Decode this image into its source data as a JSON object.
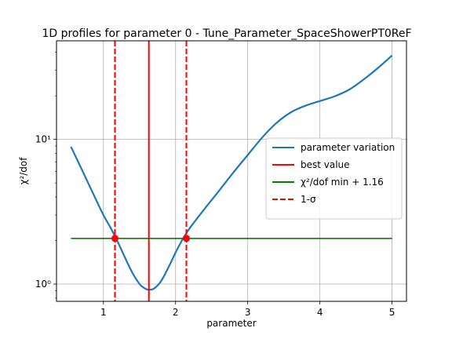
{
  "chart_data": {
    "type": "line",
    "title": "1D profiles for parameter 0 - Tune_Parameter_SpaceShowerPT0ReF",
    "xlabel": "parameter",
    "ylabel": "χ²/dof",
    "xlim": [
      0.35,
      5.2
    ],
    "ylim": [
      0.76,
      48
    ],
    "yscale": "log",
    "grid": true,
    "legend_position": "right",
    "x_ticks": [
      1,
      2,
      3,
      4,
      5
    ],
    "x_tick_labels": [
      "1",
      "2",
      "3",
      "4",
      "5"
    ],
    "y_ticks": [
      1,
      10
    ],
    "y_tick_labels": [
      "10⁰",
      "10¹"
    ],
    "series": [
      {
        "name": "parameter variation",
        "color": "#1f77b4",
        "style": "solid",
        "x": [
          0.55,
          0.7,
          0.85,
          1.0,
          1.1,
          1.2,
          1.3,
          1.4,
          1.5,
          1.55,
          1.6,
          1.63,
          1.7,
          1.8,
          1.9,
          2.0,
          2.1,
          2.2,
          2.4,
          2.6,
          2.8,
          3.0,
          3.2,
          3.4,
          3.6,
          3.8,
          4.0,
          4.2,
          4.4,
          4.6,
          4.8,
          5.0
        ],
        "y": [
          8.9,
          6.2,
          4.3,
          3.0,
          2.45,
          1.95,
          1.52,
          1.2,
          1.0,
          0.95,
          0.92,
          0.915,
          0.93,
          1.05,
          1.3,
          1.65,
          2.05,
          2.45,
          3.3,
          4.4,
          5.9,
          7.8,
          10.3,
          13.0,
          15.4,
          17.1,
          18.4,
          19.8,
          22.0,
          25.8,
          31.0,
          38.0
        ]
      },
      {
        "name": "best value",
        "color": "#ff0000",
        "style": "solid",
        "vline_x": 1.63
      },
      {
        "name": "χ²/dof min + 1.16",
        "color": "#008000",
        "style": "solid",
        "x": [
          0.55,
          5.0
        ],
        "y": [
          2.07,
          2.07
        ]
      },
      {
        "name": "1-σ",
        "color": "#ff0000",
        "style": "dashed",
        "vline_x": [
          1.16,
          2.15
        ]
      }
    ],
    "markers": [
      {
        "x": 1.16,
        "y": 2.07,
        "color": "#ff0000"
      },
      {
        "x": 2.15,
        "y": 2.07,
        "color": "#ff0000"
      }
    ]
  }
}
